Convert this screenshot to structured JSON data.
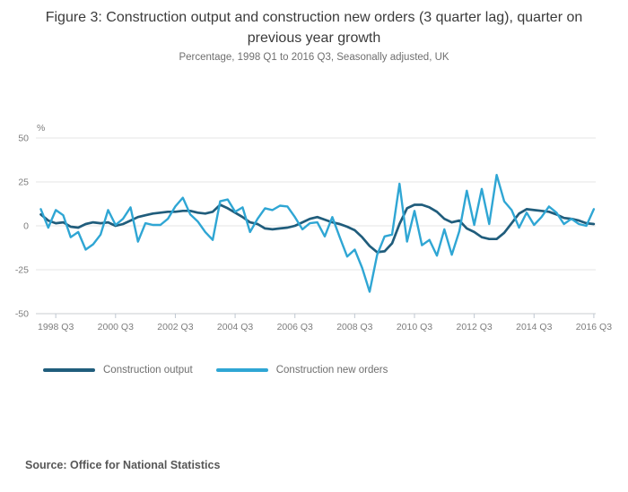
{
  "figure": {
    "title": "Figure 3: Construction output and construction new orders (3 quarter lag), quarter on previous year growth",
    "subtitle": "Percentage, 1998 Q1 to 2016 Q3, Seasonally adjusted, UK",
    "source": "Source: Office for National Statistics"
  },
  "legend": {
    "items": [
      {
        "label": "Construction output",
        "color": "#205d7c"
      },
      {
        "label": "Construction new orders",
        "color": "#2fa6d4"
      }
    ]
  },
  "chart_data": {
    "type": "line",
    "title": "Figure 3: Construction output and construction new orders (3 quarter lag), quarter on previous year growth",
    "subtitle": "Percentage, 1998 Q1 to 2016 Q3, Seasonally adjusted, UK",
    "unit_label": "%",
    "xlabel": "",
    "ylabel": "%",
    "ylim": [
      -50,
      50
    ],
    "y_ticks": [
      50,
      25,
      0,
      -25,
      -50
    ],
    "grid": true,
    "legend_position": "bottom",
    "x": [
      "1998 Q1",
      "1998 Q2",
      "1998 Q3",
      "1998 Q4",
      "1999 Q1",
      "1999 Q2",
      "1999 Q3",
      "1999 Q4",
      "2000 Q1",
      "2000 Q2",
      "2000 Q3",
      "2000 Q4",
      "2001 Q1",
      "2001 Q2",
      "2001 Q3",
      "2001 Q4",
      "2002 Q1",
      "2002 Q2",
      "2002 Q3",
      "2002 Q4",
      "2003 Q1",
      "2003 Q2",
      "2003 Q3",
      "2003 Q4",
      "2004 Q1",
      "2004 Q2",
      "2004 Q3",
      "2004 Q4",
      "2005 Q1",
      "2005 Q2",
      "2005 Q3",
      "2005 Q4",
      "2006 Q1",
      "2006 Q2",
      "2006 Q3",
      "2006 Q4",
      "2007 Q1",
      "2007 Q2",
      "2007 Q3",
      "2007 Q4",
      "2008 Q1",
      "2008 Q2",
      "2008 Q3",
      "2008 Q4",
      "2009 Q1",
      "2009 Q2",
      "2009 Q3",
      "2009 Q4",
      "2010 Q1",
      "2010 Q2",
      "2010 Q3",
      "2010 Q4",
      "2011 Q1",
      "2011 Q2",
      "2011 Q3",
      "2011 Q4",
      "2012 Q1",
      "2012 Q2",
      "2012 Q3",
      "2012 Q4",
      "2013 Q1",
      "2013 Q2",
      "2013 Q3",
      "2013 Q4",
      "2014 Q1",
      "2014 Q2",
      "2014 Q3",
      "2014 Q4",
      "2015 Q1",
      "2015 Q2",
      "2015 Q3",
      "2015 Q4",
      "2016 Q1",
      "2016 Q2",
      "2016 Q3"
    ],
    "x_tick_labels": [
      "1998 Q3",
      "2000 Q3",
      "2002 Q3",
      "2004 Q3",
      "2006 Q3",
      "2008 Q3",
      "2010 Q3",
      "2012 Q3",
      "2014 Q3",
      "2016 Q3"
    ],
    "series": [
      {
        "name": "Construction output",
        "color": "#205d7c",
        "values": [
          6.5,
          3,
          1.5,
          2,
          -0.5,
          -1,
          1,
          2,
          1.5,
          2,
          0,
          1,
          3,
          5,
          6,
          7,
          7.5,
          8,
          8,
          8.5,
          8.5,
          7.5,
          7,
          8,
          12,
          10,
          7.5,
          5,
          2,
          1,
          -1.5,
          -2,
          -1.5,
          -1,
          0,
          2,
          4,
          5,
          3.5,
          2,
          1,
          -0.5,
          -2.5,
          -6.5,
          -11.5,
          -15,
          -14.5,
          -10,
          1,
          10,
          12,
          12,
          10.5,
          8,
          4,
          2,
          3,
          -1.5,
          -3.5,
          -6.5,
          -7.5,
          -7.5,
          -4,
          1.5,
          7,
          9.5,
          9,
          8.5,
          8,
          6.5,
          4.5,
          4,
          3,
          1.5,
          1
        ]
      },
      {
        "name": "Construction new orders",
        "color": "#2fa6d4",
        "values": [
          9.5,
          -1,
          9,
          6,
          -6.5,
          -3.5,
          -13.5,
          -10.5,
          -5,
          9,
          0.5,
          4,
          10.5,
          -9,
          1.5,
          0.5,
          0.5,
          4,
          11,
          16,
          6.5,
          2.5,
          -3.5,
          -8,
          14,
          15,
          8,
          10.5,
          -3.5,
          4,
          10,
          9,
          11.5,
          11,
          5,
          -2,
          1.5,
          2,
          -6,
          5,
          -6.5,
          -17.5,
          -13.5,
          -24,
          -37.5,
          -16.5,
          -6,
          -5,
          24,
          -9,
          8.5,
          -11,
          -8,
          -17,
          -2,
          -16.5,
          -3,
          20,
          0.5,
          21,
          1,
          29,
          14,
          9,
          -1,
          7.5,
          0.5,
          5,
          11,
          7.5,
          1,
          4,
          1,
          0,
          9.5
        ]
      }
    ]
  }
}
